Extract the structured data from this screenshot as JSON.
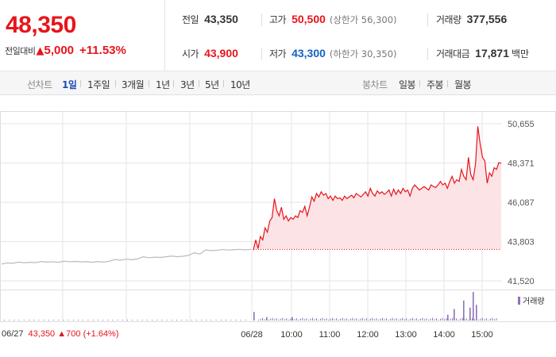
{
  "quote": {
    "current_price": "48,350",
    "change_label": "전일대비",
    "change_arrow": "▲",
    "change_value": "5,000",
    "change_rate": "+11.53%",
    "prev_close_label": "전일",
    "prev_close": "43,350",
    "high_label": "고가",
    "high": "50,500",
    "upper_limit": "(상한가 56,300)",
    "volume_label": "거래량",
    "volume": "377,556",
    "open_label": "시가",
    "open": "43,900",
    "low_label": "저가",
    "low": "43,300",
    "lower_limit": "(하한가 30,350)",
    "turnover_label": "거래대금",
    "turnover": "17,871",
    "turnover_unit": "백만"
  },
  "tabs": {
    "line_label": "선차트",
    "line_periods": [
      "1일",
      "1주일",
      "3개월",
      "1년",
      "3년",
      "5년",
      "10년"
    ],
    "active_period": "1일",
    "candle_label": "봉차트",
    "candle_periods": [
      "일봉",
      "주봉",
      "월봉"
    ]
  },
  "chart_data": {
    "type": "line",
    "y_ticks": [
      "50,655",
      "48,371",
      "46,087",
      "43,803",
      "41,520"
    ],
    "ylim": [
      41520,
      50655
    ],
    "x_ticks": [
      "06/28",
      "10:00",
      "11:00",
      "12:00",
      "13:00",
      "14:00",
      "15:00"
    ],
    "baseline": 43350,
    "prev_day": {
      "date": "06/27",
      "close": "43,350",
      "change_arrow": "▲",
      "change": "700",
      "change_rate": "(+1.64%)",
      "values": [
        42500,
        42560,
        42540,
        42610,
        42570,
        42600,
        42580,
        42640,
        42610,
        42630,
        42600,
        42660,
        42630,
        42650,
        42620,
        42640,
        42600,
        42640,
        42610,
        42660,
        42760,
        42720,
        42780,
        42750,
        42800,
        42920,
        42860,
        42900,
        42880,
        42920,
        42960,
        42920,
        42950,
        43000,
        43150,
        43080,
        43320,
        43280,
        43300,
        43340,
        43310,
        43330,
        43350,
        43320,
        43350
      ]
    },
    "today": {
      "date": "06/28",
      "values": [
        43300,
        43900,
        43400,
        44100,
        43900,
        44600,
        44350,
        45000,
        45200,
        46300,
        45600,
        45300,
        45800,
        45100,
        45300,
        45000,
        45200,
        45100,
        45300,
        45200,
        45600,
        45500,
        45850,
        45300,
        45800,
        46400,
        46150,
        46600,
        46400,
        46700,
        46500,
        46600,
        46300,
        46450,
        46200,
        46450,
        46300,
        46350,
        46200,
        46450,
        46300,
        46400,
        46500,
        46350,
        46600,
        46500,
        46400,
        46550,
        46700,
        46450,
        46900,
        46600,
        46450,
        46750,
        46600,
        46700,
        46550,
        46650,
        46800,
        46450,
        46850,
        46550,
        46800,
        46600,
        46900,
        46700,
        46800,
        46450,
        46900,
        47100,
        46950,
        46800,
        46900,
        47000,
        46900,
        46800,
        47100,
        47000,
        46950,
        47100,
        47300,
        47100,
        47200,
        46900,
        47300,
        47600,
        47200,
        47400,
        47300,
        48000,
        47600,
        47400,
        48700,
        47700,
        47400,
        48300,
        50500,
        49500,
        48700,
        48500,
        47200,
        47800,
        47600,
        48100,
        48000,
        48400,
        48350
      ]
    },
    "volume": {
      "label": "거래량",
      "color": "#8e72b8",
      "spikes": [
        {
          "time": "09:00",
          "value": 0.3
        },
        {
          "time": "09:20",
          "value": 0.12
        },
        {
          "time": "10:00",
          "value": 0.12
        },
        {
          "time": "14:05",
          "value": 0.2
        },
        {
          "time": "14:15",
          "value": 0.4
        },
        {
          "time": "14:30",
          "value": 0.7
        },
        {
          "time": "14:40",
          "value": 0.45
        },
        {
          "time": "14:45",
          "value": 1.0
        },
        {
          "time": "14:50",
          "value": 0.55
        }
      ]
    },
    "colors": {
      "line": "#e8141b",
      "fill": "#fce4e6",
      "prev_line": "#bbbbbb",
      "grid": "#e6e6e6",
      "baseline": "#e8141b"
    }
  }
}
